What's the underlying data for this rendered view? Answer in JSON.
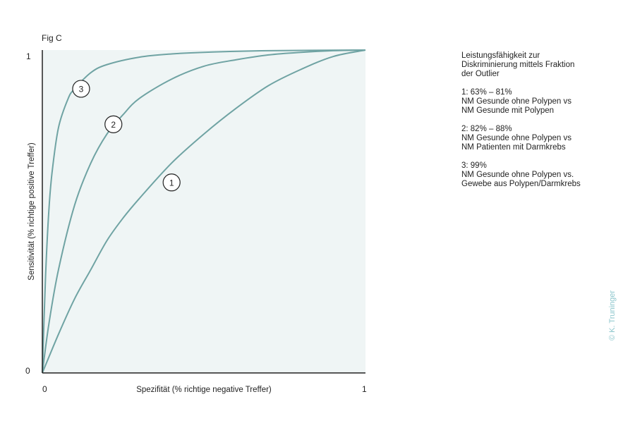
{
  "chart_data": {
    "type": "line",
    "title": "Fig C",
    "xlabel": "Spezifität (% richtige negative Treffer)",
    "ylabel": "Sensitivität (% richtige positive Treffer)",
    "xlim": [
      0,
      1
    ],
    "ylim": [
      0,
      1
    ],
    "x_ticks": [
      "0",
      "1"
    ],
    "y_ticks": [
      "0",
      "1"
    ],
    "grid": false,
    "colors": {
      "curve": "#6fa3a3",
      "plot_bg": "#eff5f5",
      "axis": "#222222",
      "credit": "#8cc6cc"
    },
    "series": [
      {
        "marker": "1",
        "label_point": [
          0.4,
          0.59
        ],
        "x": [
          0,
          0.05,
          0.1,
          0.15,
          0.2,
          0.25,
          0.3,
          0.4,
          0.5,
          0.6,
          0.7,
          0.8,
          0.9,
          1.0
        ],
        "y": [
          0,
          0.12,
          0.23,
          0.32,
          0.41,
          0.48,
          0.54,
          0.65,
          0.74,
          0.82,
          0.89,
          0.94,
          0.98,
          1.0
        ]
      },
      {
        "marker": "2",
        "label_point": [
          0.22,
          0.77
        ],
        "x": [
          0,
          0.02,
          0.05,
          0.1,
          0.15,
          0.2,
          0.25,
          0.3,
          0.4,
          0.5,
          0.6,
          0.7,
          0.8,
          0.9,
          1.0
        ],
        "y": [
          0,
          0.15,
          0.32,
          0.52,
          0.65,
          0.74,
          0.8,
          0.85,
          0.91,
          0.95,
          0.97,
          0.985,
          0.993,
          0.998,
          1.0
        ]
      },
      {
        "marker": "3",
        "label_point": [
          0.12,
          0.88
        ],
        "x": [
          0,
          0.01,
          0.02,
          0.03,
          0.05,
          0.08,
          0.1,
          0.15,
          0.2,
          0.3,
          0.4,
          0.5,
          0.7,
          1.0
        ],
        "y": [
          0,
          0.3,
          0.5,
          0.62,
          0.76,
          0.85,
          0.88,
          0.93,
          0.955,
          0.978,
          0.988,
          0.993,
          0.998,
          1.0
        ]
      }
    ]
  },
  "legend": {
    "heading": [
      "Leistungsfähigkeit zur",
      "Diskriminierung mittels Fraktion",
      "der Outlier"
    ],
    "entries": [
      [
        "1: 63% – 81%",
        "NM Gesunde ohne Polypen vs",
        "NM Gesunde mit Polypen"
      ],
      [
        "2: 82% – 88%",
        "NM Gesunde ohne Polypen vs",
        "NM Patienten mit Darmkrebs"
      ],
      [
        "3: 99%",
        "NM Gesunde ohne Polypen vs.",
        "Gewebe aus Polypen/Darmkrebs"
      ]
    ]
  },
  "credit": "© K. Truninger"
}
